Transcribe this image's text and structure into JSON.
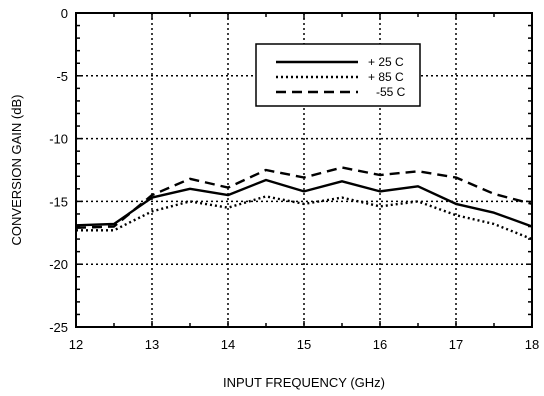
{
  "chart_data": {
    "type": "line",
    "title": "",
    "xlabel": "INPUT FREQUENCY (GHz)",
    "ylabel": "CONVERSION GAIN (dB)",
    "xlim": [
      12,
      18
    ],
    "ylim": [
      -25,
      0
    ],
    "xticks": [
      12,
      13,
      14,
      15,
      16,
      17,
      18
    ],
    "yticks": [
      0,
      -5,
      -10,
      -15,
      -20,
      -25
    ],
    "grid": true,
    "legend_position": "top-right",
    "x": [
      12,
      12.5,
      13,
      13.5,
      14,
      14.5,
      15,
      15.5,
      16,
      16.5,
      17,
      17.5,
      18
    ],
    "series": [
      {
        "name": "+ 25 C",
        "style": "solid",
        "values": [
          -16.9,
          -16.8,
          -14.7,
          -14.0,
          -14.5,
          -13.3,
          -14.2,
          -13.4,
          -14.2,
          -13.8,
          -15.2,
          -15.9,
          -17.0
        ]
      },
      {
        "name": "+ 85 C",
        "style": "dotted",
        "values": [
          -17.3,
          -17.3,
          -15.8,
          -15.0,
          -15.5,
          -14.6,
          -15.2,
          -14.7,
          -15.4,
          -15.0,
          -16.1,
          -16.8,
          -18.0
        ]
      },
      {
        "name": "-55 C",
        "style": "dashed",
        "values": [
          -17.1,
          -17.0,
          -14.5,
          -13.2,
          -13.9,
          -12.5,
          -13.1,
          -12.3,
          -12.9,
          -12.6,
          -13.1,
          -14.4,
          -15.2
        ]
      }
    ]
  }
}
